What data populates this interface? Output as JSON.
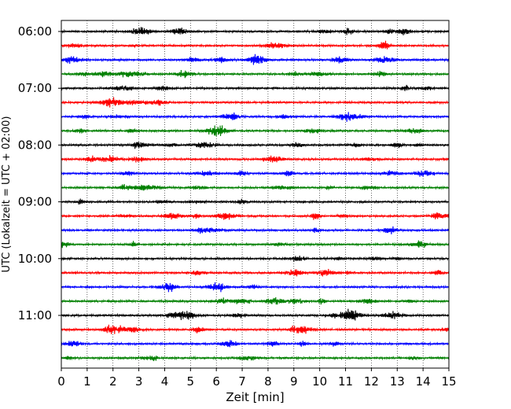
{
  "chart_data": {
    "type": "line",
    "subtype": "helicorder (seismogram drum plot)",
    "xlabel": "Zeit  [min]",
    "ylabel": "UTC (Lokalzeit = UTC + 02:00)",
    "xlim": [
      0,
      15
    ],
    "xticks": [
      "0",
      "1",
      "2",
      "3",
      "4",
      "5",
      "6",
      "7",
      "8",
      "9",
      "10",
      "11",
      "12",
      "13",
      "14",
      "15"
    ],
    "x_grid": "dotted vertical lines at each minute",
    "ytick_labels": [
      "06:00",
      "07:00",
      "08:00",
      "09:00",
      "10:00",
      "11:00"
    ],
    "trace_minutes": 15,
    "trace_count": 24,
    "trace_colors": [
      "#000000",
      "#ff0000",
      "#0000ff",
      "#008000"
    ]
  }
}
